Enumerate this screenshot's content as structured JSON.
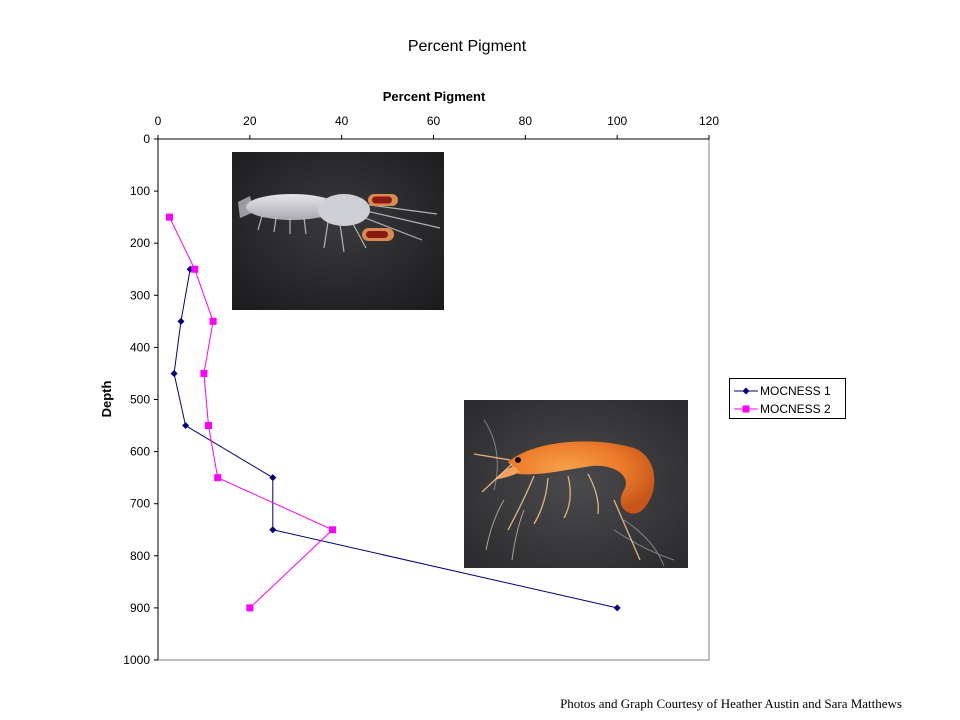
{
  "slide_title": "Percent Pigment",
  "credit": "Photos and Graph Courtesy of Heather Austin and Sara Matthews",
  "colors": {
    "mocness1": "#000080",
    "mocness2": "#ff00ff"
  },
  "chart_data": {
    "type": "line",
    "title": "Percent Pigment",
    "xlabel": "",
    "ylabel": "Depth",
    "xlim": [
      0,
      120
    ],
    "ylim": [
      0,
      1000
    ],
    "y_inverted": true,
    "x_axis_position": "top",
    "x_ticks": [
      "0",
      "20",
      "40",
      "60",
      "80",
      "100",
      "120"
    ],
    "y_ticks": [
      "0",
      "100",
      "200",
      "300",
      "400",
      "500",
      "600",
      "700",
      "800",
      "900",
      "1000"
    ],
    "grid": false,
    "legend_position": "right",
    "series": [
      {
        "name": "MOCNESS 1",
        "marker": "diamond",
        "points": [
          [
            7,
            250
          ],
          [
            5,
            350
          ],
          [
            3.5,
            450
          ],
          [
            6,
            550
          ],
          [
            25,
            650
          ],
          [
            25,
            750
          ],
          [
            100,
            900
          ]
        ]
      },
      {
        "name": "MOCNESS 2",
        "marker": "square",
        "points": [
          [
            2.5,
            150
          ],
          [
            8,
            250
          ],
          [
            12,
            350
          ],
          [
            10,
            450
          ],
          [
            11,
            550
          ],
          [
            13,
            650
          ],
          [
            38,
            750
          ],
          [
            20,
            900
          ]
        ]
      }
    ]
  },
  "photos": [
    {
      "name": "translucent-shrimp-photo"
    },
    {
      "name": "orange-shrimp-photo"
    }
  ]
}
